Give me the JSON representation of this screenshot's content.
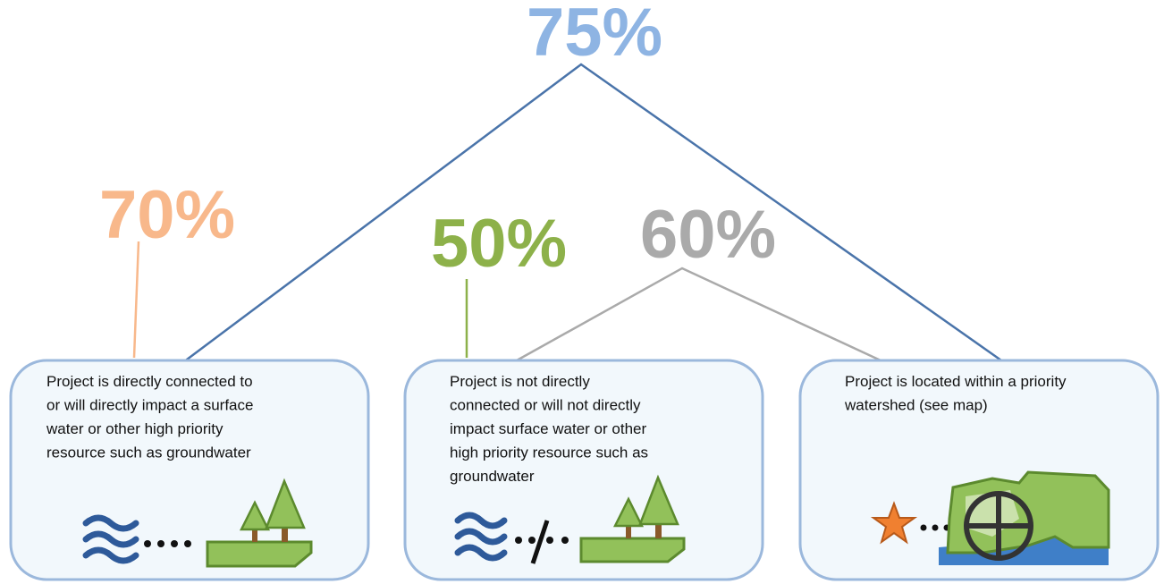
{
  "nodes": [
    {
      "label": "75%"
    },
    {
      "label": "70%"
    },
    {
      "label": "50%"
    },
    {
      "label": "60%"
    }
  ],
  "boxes": [
    {
      "lines": [
        "Project is directly connected to",
        "or will directly impact a surface",
        "water or other high priority",
        "resource such as groundwater"
      ]
    },
    {
      "lines": [
        "Project is not directly",
        "connected or will not directly",
        "impact surface water or other",
        "high priority resource such as",
        "groundwater"
      ]
    },
    {
      "lines": [
        "Project is located within a priority",
        "watershed (see map)"
      ]
    }
  ]
}
